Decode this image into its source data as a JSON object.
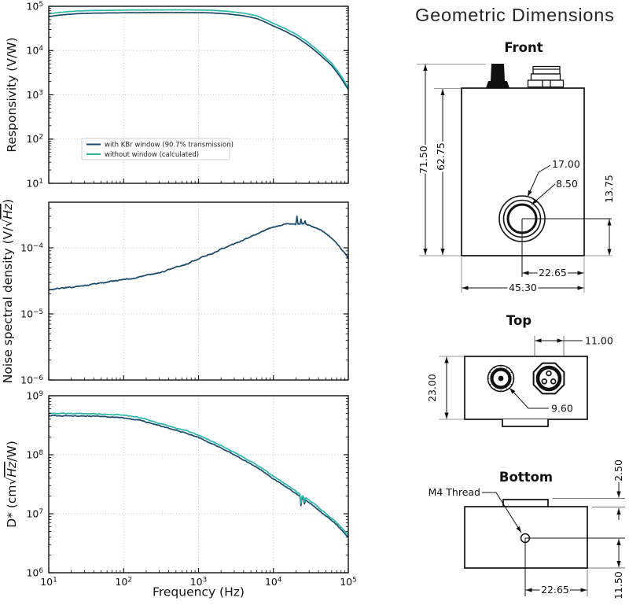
{
  "title": "Geometric Dimensions",
  "chart_data": [
    {
      "type": "line",
      "xscale": "log",
      "yscale": "log",
      "x_range": [
        10,
        100000
      ],
      "ylim": [
        10,
        100000
      ],
      "xticks": [
        10,
        100,
        1000,
        10000,
        100000
      ],
      "yticks": [
        10,
        100,
        1000,
        10000,
        100000
      ],
      "xlabel": "",
      "ylabel": "Responsivity (V/W)",
      "grid": true,
      "legend": {
        "position": "lower left"
      },
      "series": [
        {
          "name": "with KBr window (90.7% transmission)",
          "color": "#1b4a6b",
          "x": [
            10,
            15,
            25,
            50,
            100,
            300,
            700,
            1500,
            2500,
            4000,
            6000,
            8000,
            10000,
            14000,
            20000,
            28000,
            40000,
            60000,
            80000,
            100000
          ],
          "y": [
            59000,
            64000,
            68500,
            70500,
            71500,
            72000,
            72000,
            71000,
            67000,
            61000,
            53000,
            43000,
            36000,
            28000,
            20500,
            14000,
            8600,
            4600,
            2400,
            1300
          ]
        },
        {
          "name": "without window (calculated)",
          "color": "#2fb8a8",
          "x": [
            10,
            15,
            25,
            50,
            100,
            300,
            700,
            1500,
            2500,
            4000,
            6000,
            8000,
            10000,
            14000,
            20000,
            28000,
            40000,
            60000,
            80000,
            100000
          ],
          "y": [
            68000,
            73500,
            79000,
            81000,
            82000,
            83000,
            83000,
            81500,
            77000,
            70000,
            61000,
            49500,
            41000,
            32000,
            23500,
            16000,
            9800,
            5200,
            2700,
            1450
          ]
        }
      ]
    },
    {
      "type": "line",
      "xscale": "log",
      "yscale": "log",
      "x_range": [
        10,
        100000
      ],
      "ylim": [
        1e-06,
        0.00049
      ],
      "xticks": [
        10,
        100,
        1000,
        10000,
        100000
      ],
      "yticks": [
        0.0001,
        1e-05,
        1e-06
      ],
      "xlabel": "",
      "ylabel": "Noise spectral density (V/√Hz)",
      "grid": true,
      "series": [
        {
          "name": "noise spectral density",
          "color": "#1b4a6b",
          "x": [
            10,
            15,
            20,
            30,
            50,
            70,
            100,
            150,
            200,
            300,
            500,
            700,
            1000,
            1500,
            2000,
            3000,
            5000,
            7000,
            10000,
            13000,
            16000,
            20000,
            25000,
            30000,
            40000,
            50000,
            70000,
            100000
          ],
          "y": [
            2.3e-05,
            2.45e-05,
            2.55e-05,
            2.7e-05,
            2.9e-05,
            3.1e-05,
            3.3e-05,
            3.55e-05,
            3.8e-05,
            4.2e-05,
            5e-05,
            5.7e-05,
            6.8e-05,
            8.2e-05,
            9.5e-05,
            0.000115,
            0.00015,
            0.000175,
            0.000205,
            0.00022,
            0.000228,
            0.00023,
            0.000227,
            0.00022,
            0.000195,
            0.000168,
            0.000118,
            6.9e-05
          ],
          "spikes": [
            {
              "x": 20500,
              "gain": 1.33
            },
            {
              "x": 23500,
              "gain": 1.2
            },
            {
              "x": 26500,
              "gain": 1.12
            }
          ]
        }
      ]
    },
    {
      "type": "line",
      "xscale": "log",
      "yscale": "log",
      "x_range": [
        10,
        100000
      ],
      "ylim": [
        1000000.0,
        1000000000.0
      ],
      "xticks": [
        10,
        100,
        1000,
        10000,
        100000
      ],
      "yticks": [
        1000000000.0,
        100000000.0,
        10000000.0,
        1000000.0
      ],
      "xlabel": "Frequency (Hz)",
      "ylabel": "D* (cm√Hz/W)",
      "grid": true,
      "series": [
        {
          "name": "with KBr window (90.7% transmission)",
          "color": "#1b4a6b",
          "x": [
            10,
            20,
            40,
            70,
            100,
            150,
            200,
            300,
            500,
            700,
            1000,
            1500,
            2000,
            3000,
            5000,
            7000,
            10000,
            15000,
            20000,
            30000,
            50000,
            70000,
            100000
          ],
          "y": [
            460000000.0,
            455000000.0,
            450000000.0,
            440000000.0,
            425000000.0,
            395000000.0,
            360000000.0,
            310000000.0,
            260000000.0,
            230000000.0,
            195000000.0,
            155000000.0,
            130000000.0,
            100000000.0,
            70000000.0,
            54000000.0,
            39000000.0,
            28000000.0,
            22000000.0,
            15500000.0,
            9300000.0,
            6500000.0,
            4000000.0
          ],
          "spikes": [
            {
              "x": 23500,
              "gain": 0.72
            },
            {
              "x": 26000,
              "gain": 0.84
            }
          ]
        },
        {
          "name": "without window (calculated)",
          "color": "#2fb8a8",
          "x": [
            10,
            20,
            40,
            70,
            100,
            150,
            200,
            300,
            500,
            700,
            1000,
            1500,
            2000,
            3000,
            5000,
            7000,
            10000,
            15000,
            20000,
            30000,
            50000,
            70000,
            100000
          ],
          "y": [
            505000000.0,
            500000000.0,
            495000000.0,
            485000000.0,
            470000000.0,
            435000000.0,
            395000000.0,
            340000000.0,
            285000000.0,
            255000000.0,
            215000000.0,
            170000000.0,
            143000000.0,
            110000000.0,
            77000000.0,
            59000000.0,
            43000000.0,
            31000000.0,
            24000000.0,
            17000000.0,
            10200000.0,
            7100000.0,
            4400000.0
          ],
          "spikes": [
            {
              "x": 23500,
              "gain": 0.72
            },
            {
              "x": 26000,
              "gain": 0.84
            }
          ]
        }
      ]
    }
  ],
  "drawings": {
    "front": {
      "heading": "Front",
      "dims": {
        "total_height": "71.50",
        "body_height": "62.75",
        "window_outer_dia": "17.00",
        "window_inner_dia": "8.50",
        "window_center_height": "13.75",
        "window_center_offset": "22.65",
        "body_width": "45.30"
      }
    },
    "top": {
      "heading": "Top",
      "dims": {
        "body_depth": "23.00",
        "din_connector_dia": "11.00",
        "sma_connector_dia": "9.60"
      }
    },
    "bottom": {
      "heading": "Bottom",
      "thread_label": "M4 Thread",
      "dims": {
        "tab_height": "2.50",
        "hole_offset_x": "22.65",
        "hole_offset_y": "11.50"
      }
    }
  }
}
